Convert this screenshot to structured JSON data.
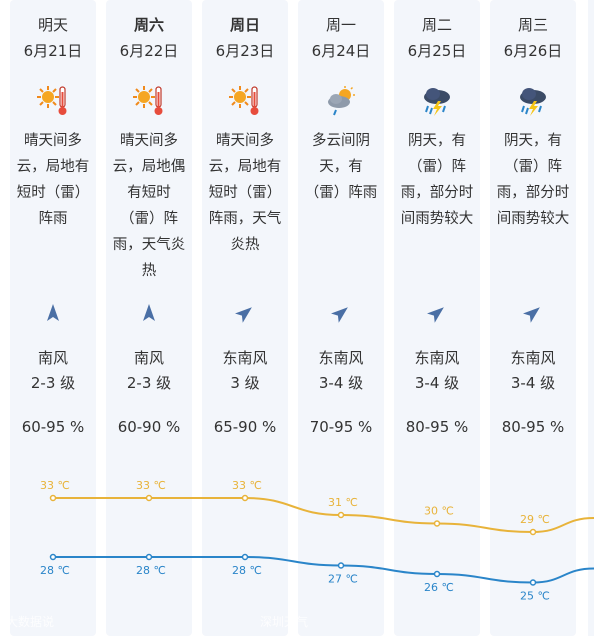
{
  "days": [
    {
      "day": "明天",
      "bold": false,
      "date": "6月21日",
      "icon": "sunny-hot-icon",
      "condition": [
        "晴天间多",
        "云，局地有",
        "短时（雷）",
        "阵雨"
      ],
      "wind_dir": "南风",
      "wind_level": "2-3 级",
      "wind_icon": "south-wind-arrow-icon",
      "humidity": "60-95 %",
      "high": 33,
      "high_label": "33 ℃",
      "low": 28,
      "low_label": "28 ℃"
    },
    {
      "day": "周六",
      "bold": true,
      "date": "6月22日",
      "icon": "sunny-hot-icon",
      "condition": [
        "晴天间多",
        "云，局地偶",
        "有短时",
        "（雷）阵",
        "雨，天气炎",
        "热"
      ],
      "wind_dir": "南风",
      "wind_level": "2-3 级",
      "wind_icon": "south-wind-arrow-icon",
      "humidity": "60-90 %",
      "high": 33,
      "high_label": "33 ℃",
      "low": 28,
      "low_label": "28 ℃"
    },
    {
      "day": "周日",
      "bold": true,
      "date": "6月23日",
      "icon": "sunny-hot-icon",
      "condition": [
        "晴天间多",
        "云，局地有",
        "短时（雷）",
        "阵雨，天气",
        "炎热"
      ],
      "wind_dir": "东南风",
      "wind_level": "3 级",
      "wind_icon": "southeast-wind-arrow-icon",
      "humidity": "65-90 %",
      "high": 33,
      "high_label": "33 ℃",
      "low": 28,
      "low_label": "28 ℃"
    },
    {
      "day": "周一",
      "bold": false,
      "date": "6月24日",
      "icon": "cloudy-rain-icon",
      "condition": [
        "多云间阴",
        "天，有",
        "（雷）阵雨"
      ],
      "wind_dir": "东南风",
      "wind_level": "3-4 级",
      "wind_icon": "southeast-wind-arrow-icon",
      "humidity": "70-95 %",
      "high": 31,
      "high_label": "31 ℃",
      "low": 27,
      "low_label": "27 ℃"
    },
    {
      "day": "周二",
      "bold": false,
      "date": "6月25日",
      "icon": "thunderstorm-icon",
      "condition": [
        "阴天，有",
        "（雷）阵",
        "雨，部分时",
        "间雨势较大"
      ],
      "wind_dir": "东南风",
      "wind_level": "3-4 级",
      "wind_icon": "southeast-wind-arrow-icon",
      "humidity": "80-95 %",
      "high": 30,
      "high_label": "30 ℃",
      "low": 26,
      "low_label": "26 ℃"
    },
    {
      "day": "周三",
      "bold": false,
      "date": "6月26日",
      "icon": "thunderstorm-icon",
      "condition": [
        "阴天，有",
        "（雷）阵",
        "雨，部分时",
        "间雨势较大"
      ],
      "wind_dir": "东南风",
      "wind_level": "3-4 级",
      "wind_icon": "southeast-wind-arrow-icon",
      "humidity": "80-95 %",
      "high": 29,
      "high_label": "29 ℃",
      "low": 25,
      "low_label": "25 ℃"
    }
  ],
  "colors": {
    "high_line": "#e8b33a",
    "low_line": "#2a85c9",
    "column_bg": "#f3f6fb",
    "wind_arrow": "#4a6fa5"
  },
  "footer": {
    "left": "大数据说",
    "middle": "深圳天气"
  }
}
